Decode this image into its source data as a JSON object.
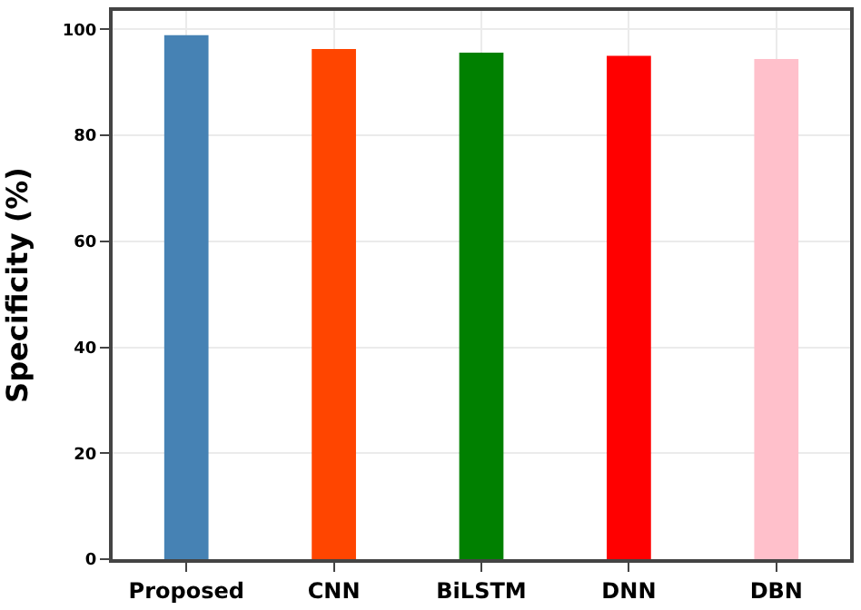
{
  "chart_data": {
    "type": "bar",
    "ylabel": "Specificity (%)",
    "categories": [
      "Proposed",
      "CNN",
      "BiLSTM",
      "DNN",
      "DBN"
    ],
    "values": [
      98.9,
      96.3,
      95.6,
      95.0,
      94.4
    ],
    "colors": [
      "#4682b4",
      "#ff4500",
      "#008000",
      "#ff0000",
      "#ffc0cb"
    ],
    "ylim": [
      0,
      103.5
    ],
    "yticks": [
      0,
      20,
      40,
      60,
      80,
      100
    ],
    "grid": true
  }
}
